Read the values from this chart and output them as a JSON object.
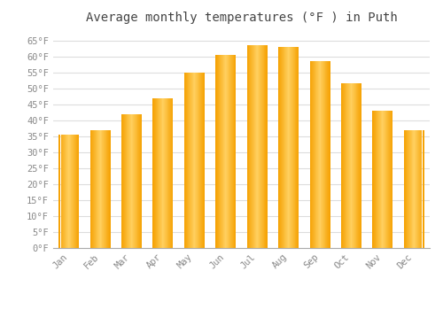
{
  "title": "Average monthly temperatures (°F ) in Puth",
  "months": [
    "Jan",
    "Feb",
    "Mar",
    "Apr",
    "May",
    "Jun",
    "Jul",
    "Aug",
    "Sep",
    "Oct",
    "Nov",
    "Dec"
  ],
  "values": [
    35.5,
    37.0,
    42.0,
    47.0,
    55.0,
    60.5,
    63.5,
    63.0,
    58.5,
    51.5,
    43.0,
    37.0
  ],
  "bar_color_center": "#FFD060",
  "bar_color_edge": "#F5A000",
  "background_color": "#FFFFFF",
  "grid_color": "#DDDDDD",
  "text_color": "#888888",
  "title_color": "#444444",
  "ylim": [
    0,
    68
  ],
  "yticks": [
    0,
    5,
    10,
    15,
    20,
    25,
    30,
    35,
    40,
    45,
    50,
    55,
    60,
    65
  ],
  "title_fontsize": 10,
  "tick_fontsize": 7.5,
  "font_family": "monospace"
}
